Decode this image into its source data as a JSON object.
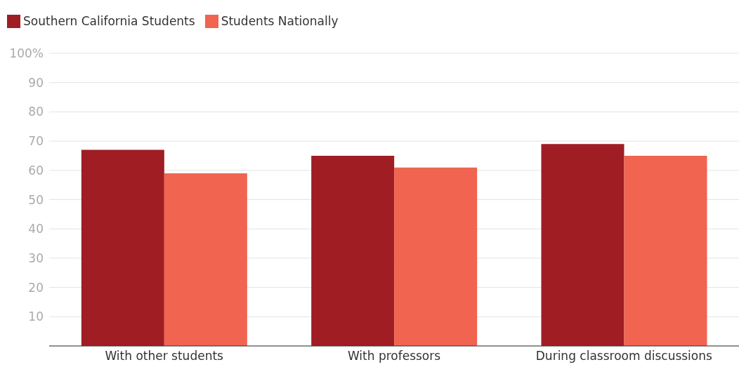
{
  "chart_data": {
    "type": "bar",
    "categories": [
      "With other students",
      "With professors",
      "During classroom discussions"
    ],
    "series": [
      {
        "name": "Southern California Students",
        "color": "#a01d24",
        "values": [
          67,
          65,
          69
        ]
      },
      {
        "name": "Students Nationally",
        "color": "#f06450",
        "values": [
          59,
          61,
          65
        ]
      }
    ],
    "ylim": [
      0,
      100
    ],
    "yticks": [
      10,
      20,
      30,
      40,
      50,
      60,
      70,
      80,
      90,
      {
        "value": 100,
        "label": "100%"
      }
    ],
    "grid": "y",
    "legend": "top left"
  }
}
